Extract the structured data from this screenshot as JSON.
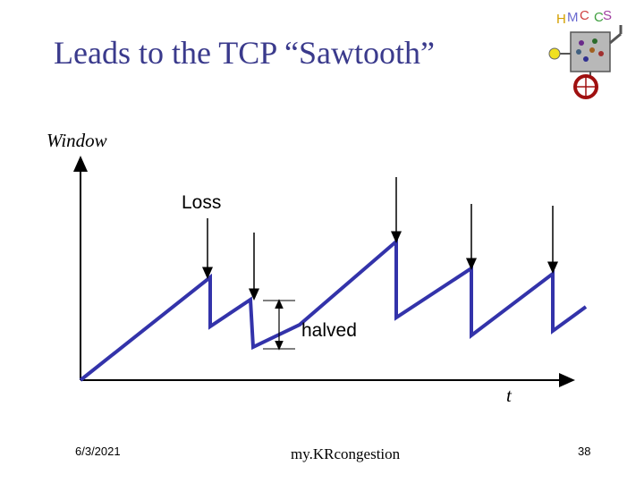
{
  "slide": {
    "title": "Leads to the TCP “Sawtooth”",
    "footer_date": "6/3/2021",
    "footer_course": "my.KRcongestion",
    "page_number": "38"
  },
  "diagram": {
    "y_axis_label": "Window",
    "x_axis_label": "t",
    "loss_label": "Loss",
    "halved_label": "halved",
    "line_color": "#3333aa",
    "logo_icon": "hmc-cs-robot-logo"
  }
}
